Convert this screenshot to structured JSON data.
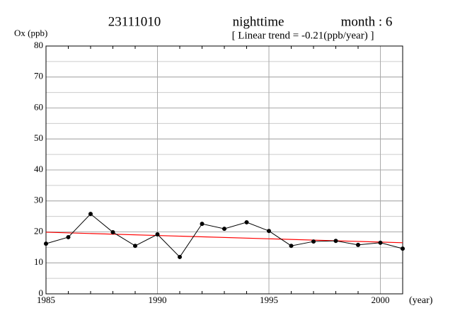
{
  "chart_data": {
    "type": "line",
    "station": "23111010",
    "period": "nighttime",
    "month_label": "month : 6",
    "subtitle": "[ Linear trend = -0.21(ppb/year) ]",
    "ylabel": "Ox (ppb)",
    "xlabel": "(year)",
    "x": [
      1985,
      1986,
      1987,
      1988,
      1989,
      1990,
      1991,
      1992,
      1993,
      1994,
      1995,
      1996,
      1997,
      1998,
      1999,
      2000,
      2001
    ],
    "series": [
      {
        "color": "#000000",
        "values": [
          16.2,
          18.3,
          25.8,
          19.9,
          15.5,
          19.2,
          11.9,
          22.6,
          21.0,
          23.1,
          20.3,
          15.5,
          16.9,
          17.1,
          15.8,
          16.5,
          14.6
        ]
      }
    ],
    "trend": {
      "x": [
        1985,
        2001
      ],
      "values": [
        19.9,
        16.5
      ],
      "color": "#ff0000"
    },
    "xlim": [
      1985,
      2001
    ],
    "xticks": [
      1985,
      1990,
      1995,
      2000
    ],
    "xminor_step": 1,
    "ylim": [
      0,
      80
    ],
    "yticks": [
      0,
      10,
      20,
      30,
      40,
      50,
      60,
      70,
      80
    ],
    "yminor_step": 5,
    "grid": true
  }
}
